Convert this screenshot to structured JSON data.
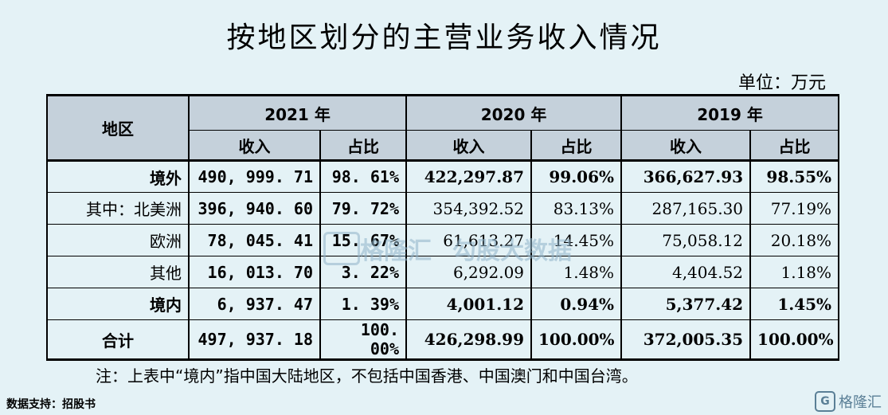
{
  "title": "按地区划分的主营业务收入情况",
  "unit": "单位：万元",
  "header": {
    "region": "地区",
    "years": [
      "2021 年",
      "2020 年",
      "2019 年"
    ],
    "income": "收入",
    "share": "占比"
  },
  "rows": [
    {
      "region": "境外",
      "v2021": "490, 999. 71",
      "p2021": "98. 61%",
      "v2020": "422,297.87",
      "p2020": "99.06%",
      "v2019": "366,627.93",
      "p2019": "98.55%"
    },
    {
      "region": "其中：北美洲",
      "v2021": "396, 940. 60",
      "p2021": "79. 72%",
      "v2020": "354,392.52",
      "p2020": "83.13%",
      "v2019": "287,165.30",
      "p2019": "77.19%"
    },
    {
      "region": "欧洲",
      "v2021": "78, 045. 41",
      "p2021": "15. 67%",
      "v2020": "61,613.27",
      "p2020": "14.45%",
      "v2019": "75,058.12",
      "p2019": "20.18%"
    },
    {
      "region": "其他",
      "v2021": "16, 013. 70",
      "p2021": "3. 22%",
      "v2020": "6,292.09",
      "p2020": "1.48%",
      "v2019": "4,404.52",
      "p2019": "1.18%"
    },
    {
      "region": "境内",
      "v2021": "6, 937. 47",
      "p2021": "1. 39%",
      "v2020": "4,001.12",
      "p2020": "0.94%",
      "v2019": "5,377.42",
      "p2019": "1.45%"
    },
    {
      "region": "合计",
      "v2021": "497, 937. 18",
      "p2021": "100. 00%",
      "v2020": "426,298.99",
      "p2020": "100.00%",
      "v2019": "372,005.35",
      "p2019": "100.00%"
    }
  ],
  "note": "注：上表中“境内”指中国大陆地区，不包括中国香港、中国澳门和中国台湾。",
  "source": "数据支持：招股书",
  "watermark": {
    "text1": "格隆汇",
    "text2": "勾股大数据"
  },
  "corner_logo": {
    "text": "格隆汇"
  }
}
